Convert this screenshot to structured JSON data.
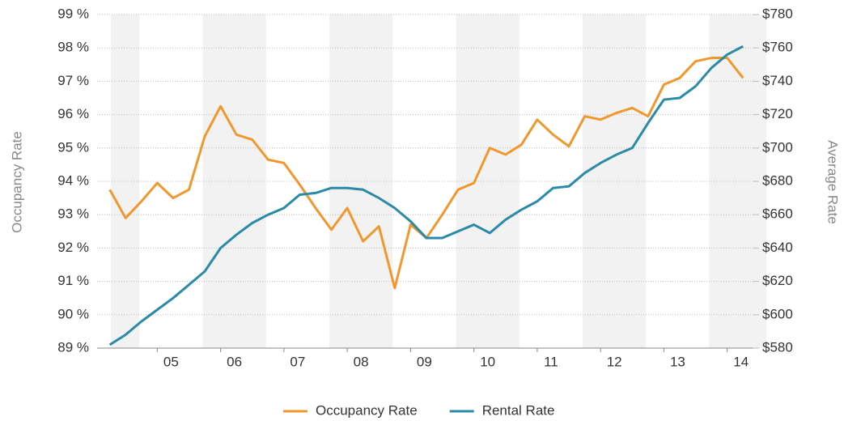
{
  "chart_data": {
    "type": "line",
    "y_label": "Occupancy Rate",
    "y2_label": "Average Rate",
    "x": [
      2004.75,
      2005,
      2005.25,
      2005.5,
      2005.75,
      2006,
      2006.25,
      2006.5,
      2006.75,
      2007,
      2007.25,
      2007.5,
      2007.75,
      2008,
      2008.25,
      2008.5,
      2008.75,
      2009,
      2009.25,
      2009.5,
      2009.75,
      2010,
      2010.25,
      2010.5,
      2010.75,
      2011,
      2011.25,
      2011.5,
      2011.75,
      2012,
      2012.25,
      2012.5,
      2012.75,
      2013,
      2013.25,
      2013.5,
      2013.75,
      2014,
      2014.25,
      2014.5,
      2014.75
    ],
    "series": [
      {
        "name": "Occupancy Rate",
        "color": "#f0982e",
        "axis": "y",
        "values": [
          93.75,
          92.9,
          93.4,
          93.95,
          93.5,
          93.75,
          95.35,
          96.25,
          95.4,
          95.25,
          94.65,
          94.55,
          93.9,
          93.2,
          92.55,
          93.2,
          92.2,
          92.65,
          90.8,
          92.7,
          92.3,
          93.0,
          93.75,
          93.95,
          95.0,
          94.8,
          95.1,
          95.85,
          95.4,
          95.05,
          95.95,
          95.85,
          96.05,
          96.2,
          95.95,
          96.9,
          97.1,
          97.6,
          97.7,
          97.7,
          97.1
        ]
      },
      {
        "name": "Rental Rate",
        "color": "#2a8aa8",
        "axis": "y2",
        "values": [
          582,
          588,
          596,
          603,
          610,
          618,
          626,
          640,
          648,
          655,
          660,
          664,
          672,
          673,
          676,
          676,
          675,
          670,
          664,
          656,
          646,
          646,
          650,
          654,
          649,
          657,
          663,
          668,
          676,
          677,
          685,
          691,
          696,
          700,
          715,
          729,
          730,
          737,
          748,
          756,
          761
        ]
      }
    ],
    "xlim": [
      2004.55,
      2014.9
    ],
    "xticks": [
      {
        "value": 2005.5,
        "label": "05"
      },
      {
        "value": 2006.5,
        "label": "06"
      },
      {
        "value": 2007.5,
        "label": "07"
      },
      {
        "value": 2008.5,
        "label": "08"
      },
      {
        "value": 2009.5,
        "label": "09"
      },
      {
        "value": 2010.5,
        "label": "10"
      },
      {
        "value": 2011.5,
        "label": "11"
      },
      {
        "value": 2012.5,
        "label": "12"
      },
      {
        "value": 2013.5,
        "label": "13"
      },
      {
        "value": 2014.5,
        "label": "14"
      }
    ],
    "ylim": [
      89,
      99
    ],
    "yticks": [
      {
        "value": 89,
        "label": "89 %"
      },
      {
        "value": 90,
        "label": "90 %"
      },
      {
        "value": 91,
        "label": "91 %"
      },
      {
        "value": 92,
        "label": "92 %"
      },
      {
        "value": 93,
        "label": "93 %"
      },
      {
        "value": 94,
        "label": "94 %"
      },
      {
        "value": 95,
        "label": "95 %"
      },
      {
        "value": 96,
        "label": "96 %"
      },
      {
        "value": 97,
        "label": "97 %"
      },
      {
        "value": 98,
        "label": "98 %"
      },
      {
        "value": 99,
        "label": "99 %"
      }
    ],
    "y2lim": [
      580,
      780
    ],
    "y2ticks": [
      {
        "value": 580,
        "label": "$580"
      },
      {
        "value": 600,
        "label": "$600"
      },
      {
        "value": 620,
        "label": "$620"
      },
      {
        "value": 640,
        "label": "$640"
      },
      {
        "value": 660,
        "label": "$660"
      },
      {
        "value": 680,
        "label": "$680"
      },
      {
        "value": 700,
        "label": "$700"
      },
      {
        "value": 720,
        "label": "$720"
      },
      {
        "value": 740,
        "label": "$740"
      },
      {
        "value": 760,
        "label": "$760"
      },
      {
        "value": 780,
        "label": "$780"
      }
    ],
    "grid": true,
    "legend": "bottom"
  }
}
